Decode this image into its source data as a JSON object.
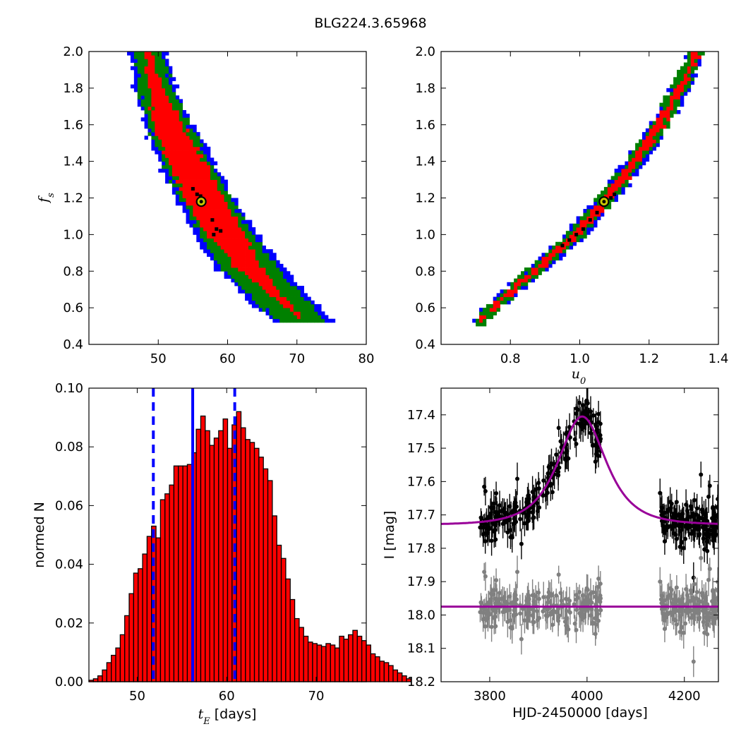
{
  "figure": {
    "title": "BLG224.3.65968"
  },
  "colors": {
    "contour_outer": "#0000ff",
    "contour_mid": "#008000",
    "contour_inner": "#ff0000",
    "samples": "#000000",
    "best_fit_marker": "#c8c800",
    "hist_bar": "#ff0000",
    "hist_lines": "#0000ff",
    "model": "#990099",
    "data_main": "#000000",
    "data_residual": "#808080"
  },
  "chart_data": [
    {
      "id": "fs_vs_tE",
      "type": "heatmap",
      "title": "",
      "xlabel": "",
      "ylabel": "f_s",
      "xlim": [
        40,
        80
      ],
      "ylim": [
        0.4,
        2.0
      ],
      "xticks": [
        50,
        60,
        70,
        80
      ],
      "yticks": [
        0.4,
        0.6,
        0.8,
        1.0,
        1.2,
        1.4,
        1.6,
        1.8,
        2.0
      ],
      "ytick_labels": [
        "0.4",
        "0.6",
        "0.8",
        "1.0",
        "1.2",
        "1.4",
        "1.6",
        "1.8",
        "2.0"
      ],
      "best_fit": {
        "x": 56.2,
        "y": 1.18
      },
      "ridge": {
        "y": [
          2.0,
          1.8,
          1.6,
          1.4,
          1.2,
          1.0,
          0.8,
          0.6,
          0.53
        ],
        "center_x": [
          48.4,
          49.6,
          51.5,
          54.0,
          56.7,
          59.8,
          63.6,
          68.8,
          71.0
        ],
        "half_width_outer": [
          2.6,
          3.0,
          3.6,
          4.0,
          4.3,
          4.6,
          4.9,
          4.6,
          4.4
        ],
        "half_width_mid": [
          2.0,
          2.4,
          3.0,
          3.4,
          3.6,
          3.8,
          4.0,
          3.6,
          3.4
        ],
        "half_width_inner": [
          0.6,
          1.0,
          2.0,
          2.6,
          2.8,
          2.6,
          1.8,
          0.5,
          0.0
        ]
      },
      "samples": [
        {
          "x": 55.0,
          "y": 1.25
        },
        {
          "x": 55.6,
          "y": 1.22
        },
        {
          "x": 56.1,
          "y": 1.21
        },
        {
          "x": 57.8,
          "y": 1.08
        },
        {
          "x": 58.4,
          "y": 1.03
        },
        {
          "x": 58.0,
          "y": 1.0
        },
        {
          "x": 59.0,
          "y": 1.02
        },
        {
          "x": 56.5,
          "y": 1.17
        }
      ]
    },
    {
      "id": "fs_vs_u0",
      "type": "heatmap",
      "title": "",
      "xlabel": "u_0",
      "ylabel": "",
      "xlim": [
        0.6,
        1.4
      ],
      "ylim": [
        0.4,
        2.0
      ],
      "xticks": [
        0.8,
        1.0,
        1.2,
        1.4
      ],
      "xtick_labels": [
        "0.8",
        "1.0",
        "1.2",
        "1.4"
      ],
      "yticks": [
        0.4,
        0.6,
        0.8,
        1.0,
        1.2,
        1.4,
        1.6,
        1.8,
        2.0
      ],
      "ytick_labels": [
        "0.4",
        "0.6",
        "0.8",
        "1.0",
        "1.2",
        "1.4",
        "1.6",
        "1.8",
        "2.0"
      ],
      "best_fit": {
        "x": 1.07,
        "y": 1.18
      },
      "ridge": {
        "y": [
          0.52,
          0.6,
          0.8,
          1.0,
          1.2,
          1.4,
          1.6,
          1.8,
          2.0
        ],
        "center_x": [
          0.71,
          0.75,
          0.87,
          0.99,
          1.08,
          1.16,
          1.23,
          1.29,
          1.34
        ],
        "half_width_outer": [
          0.015,
          0.025,
          0.03,
          0.032,
          0.032,
          0.032,
          0.03,
          0.03,
          0.025
        ],
        "half_width_mid": [
          0.012,
          0.02,
          0.024,
          0.026,
          0.026,
          0.026,
          0.024,
          0.024,
          0.02
        ],
        "half_width_inner": [
          0.0,
          0.008,
          0.012,
          0.014,
          0.014,
          0.014,
          0.012,
          0.01,
          0.008
        ]
      },
      "samples": [
        {
          "x": 0.95,
          "y": 0.94
        },
        {
          "x": 0.97,
          "y": 0.97
        },
        {
          "x": 0.99,
          "y": 1.0
        },
        {
          "x": 1.01,
          "y": 1.03
        },
        {
          "x": 1.03,
          "y": 1.08
        },
        {
          "x": 1.05,
          "y": 1.12
        },
        {
          "x": 1.07,
          "y": 1.16
        },
        {
          "x": 1.09,
          "y": 1.2
        },
        {
          "x": 1.1,
          "y": 1.22
        }
      ]
    },
    {
      "id": "tE_histogram",
      "type": "bar",
      "title": "",
      "xlabel_math": "t_E",
      "xlabel_text": "[days]",
      "ylabel": "normed N",
      "xlim": [
        44.6,
        75.6
      ],
      "ylim": [
        0.0,
        0.1
      ],
      "xticks": [
        50,
        60,
        70
      ],
      "yticks": [
        0.0,
        0.02,
        0.04,
        0.06,
        0.08,
        0.1
      ],
      "ytick_labels": [
        "0.00",
        "0.02",
        "0.04",
        "0.06",
        "0.08",
        "0.10"
      ],
      "bin_start": 44.6,
      "bin_width": 0.5,
      "values": [
        0.0005,
        0.001,
        0.002,
        0.004,
        0.0065,
        0.009,
        0.0115,
        0.016,
        0.0225,
        0.03,
        0.037,
        0.0385,
        0.0435,
        0.0495,
        0.053,
        0.049,
        0.062,
        0.064,
        0.067,
        0.0735,
        0.0735,
        0.0735,
        0.074,
        0.078,
        0.086,
        0.0905,
        0.0855,
        0.0805,
        0.083,
        0.0855,
        0.0895,
        0.0795,
        0.0875,
        0.092,
        0.0865,
        0.0825,
        0.0815,
        0.0795,
        0.0765,
        0.0725,
        0.0685,
        0.0565,
        0.0465,
        0.042,
        0.035,
        0.028,
        0.0215,
        0.0185,
        0.0155,
        0.0135,
        0.013,
        0.0125,
        0.012,
        0.013,
        0.0125,
        0.0115,
        0.0155,
        0.0145,
        0.016,
        0.0175,
        0.0155,
        0.014,
        0.0125,
        0.0095,
        0.0085,
        0.007,
        0.0065,
        0.0055,
        0.004,
        0.003,
        0.002,
        0.001
      ],
      "median": 56.2,
      "lower": 51.8,
      "upper": 60.9
    },
    {
      "id": "lightcurve",
      "type": "scatter",
      "title": "",
      "xlabel": "HJD-2450000 [days]",
      "ylabel": "I [mag]",
      "xlim": [
        3700,
        4270
      ],
      "ylim": [
        18.2,
        17.32
      ],
      "xticks": [
        3800,
        4000,
        4200
      ],
      "yticks": [
        17.4,
        17.5,
        17.6,
        17.7,
        17.8,
        17.9,
        18.0,
        18.1,
        18.2
      ],
      "ytick_labels": [
        "17.4",
        "17.5",
        "17.6",
        "17.7",
        "17.8",
        "17.9",
        "18.0",
        "18.1",
        "18.2"
      ],
      "model": {
        "t0": 3990,
        "tE": 56.2,
        "u0": 1.07,
        "fs": 1.18,
        "baseline": 17.73
      },
      "residual_offset": 17.975,
      "seasons": [
        {
          "t_start": 3780,
          "t_end": 4030,
          "n": 220
        },
        {
          "t_start": 4150,
          "t_end": 4270,
          "n": 150
        }
      ],
      "scatter_sigma": 0.03,
      "error_bar": 0.035
    }
  ]
}
